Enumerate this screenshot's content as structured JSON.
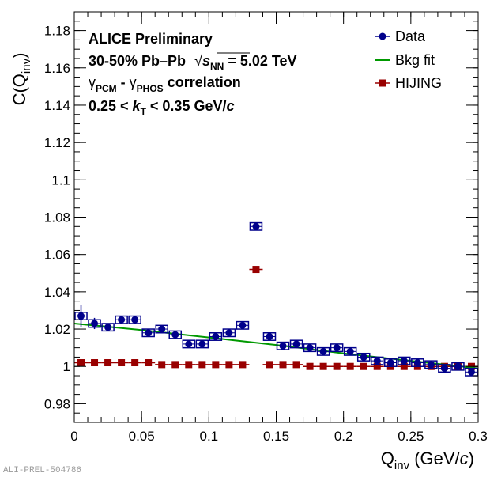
{
  "chart_data": {
    "type": "scatter",
    "title": "",
    "xlabel": {
      "main": "Q",
      "sub": "inv",
      "unit_pre": " (GeV/",
      "unit_it": "c",
      "unit_post": ")"
    },
    "ylabel": {
      "main": "C(Q",
      "sub": "inv",
      "post": ")"
    },
    "xlim": [
      0,
      0.3
    ],
    "ylim": [
      0.97,
      1.19
    ],
    "xticks": [
      0,
      0.05,
      0.1,
      0.15,
      0.2,
      0.25,
      0.3
    ],
    "xtick_labels": [
      "0",
      "0.05",
      "0.1",
      "0.15",
      "0.2",
      "0.25",
      "0.3"
    ],
    "yticks": [
      0.98,
      1.0,
      1.02,
      1.04,
      1.06,
      1.08,
      1.1,
      1.12,
      1.14,
      1.16,
      1.18
    ],
    "ytick_labels": [
      "0.98",
      "1",
      "1.02",
      "1.04",
      "1.06",
      "1.08",
      "1.1",
      "1.12",
      "1.14",
      "1.16",
      "1.18"
    ],
    "grid": false,
    "legend_position": "top-right",
    "series": [
      {
        "name": "Data",
        "color": "#00008b",
        "x": [
          0.005,
          0.015,
          0.025,
          0.035,
          0.045,
          0.055,
          0.065,
          0.075,
          0.085,
          0.095,
          0.105,
          0.115,
          0.125,
          0.135,
          0.145,
          0.155,
          0.165,
          0.175,
          0.185,
          0.195,
          0.205,
          0.215,
          0.225,
          0.235,
          0.245,
          0.255,
          0.265,
          0.275,
          0.285,
          0.295
        ],
        "y": [
          1.027,
          1.023,
          1.021,
          1.025,
          1.025,
          1.018,
          1.02,
          1.017,
          1.012,
          1.012,
          1.016,
          1.018,
          1.022,
          1.075,
          1.016,
          1.011,
          1.012,
          1.01,
          1.008,
          1.01,
          1.008,
          1.005,
          1.003,
          1.002,
          1.003,
          1.002,
          1.001,
          0.999,
          1.0,
          0.997
        ],
        "stat_err": [
          0.006,
          0.003,
          0.002,
          0.001,
          0.001,
          0.001,
          0.001,
          0.001,
          0.001,
          0.001,
          0.001,
          0.001,
          0.001,
          0.001,
          0.001,
          0.001,
          0.001,
          0.001,
          0.001,
          0.001,
          0.001,
          0.001,
          0.001,
          0.001,
          0.001,
          0.001,
          0.001,
          0.001,
          0.001,
          0.001
        ],
        "sys_err": 0.002
      },
      {
        "name": "Bkg fit",
        "color": "#009900",
        "x": [
          0.0,
          0.05,
          0.1,
          0.15,
          0.2,
          0.25,
          0.3
        ],
        "y": [
          1.023,
          1.0195,
          1.0155,
          1.0115,
          1.007,
          1.003,
          0.999
        ]
      },
      {
        "name": "HIJING",
        "color": "#990000",
        "x": [
          0.005,
          0.015,
          0.025,
          0.035,
          0.045,
          0.055,
          0.065,
          0.075,
          0.085,
          0.095,
          0.105,
          0.115,
          0.125,
          0.135,
          0.145,
          0.155,
          0.165,
          0.175,
          0.185,
          0.195,
          0.205,
          0.215,
          0.225,
          0.235,
          0.245,
          0.255,
          0.265,
          0.275,
          0.285,
          0.295
        ],
        "y": [
          1.002,
          1.002,
          1.002,
          1.002,
          1.002,
          1.002,
          1.001,
          1.001,
          1.001,
          1.001,
          1.001,
          1.001,
          1.001,
          1.052,
          1.001,
          1.001,
          1.001,
          1.0,
          1.0,
          1.0,
          1.0,
          1.0,
          1.0,
          1.0,
          1.0,
          1.0,
          1.0,
          1.0,
          1.0,
          1.0
        ]
      }
    ],
    "annotations": {
      "line1": "ALICE Preliminary",
      "line2_pre": "30-50% Pb–Pb",
      "line2_s": "s",
      "line2_nn": "NN",
      "line2_post": " = 5.02 TeV",
      "line3_g1": "γ",
      "line3_sub1": "PCM",
      "line3_dash": " - ",
      "line3_g2": "γ",
      "line3_sub2": "PHOS",
      "line3_post": " correlation",
      "line4_pre": "0.25 < ",
      "line4_k": "k",
      "line4_T": "T",
      "line4_mid": " < 0.35 GeV/",
      "line4_c": "c"
    },
    "watermark": "ALI-PREL-504786"
  }
}
